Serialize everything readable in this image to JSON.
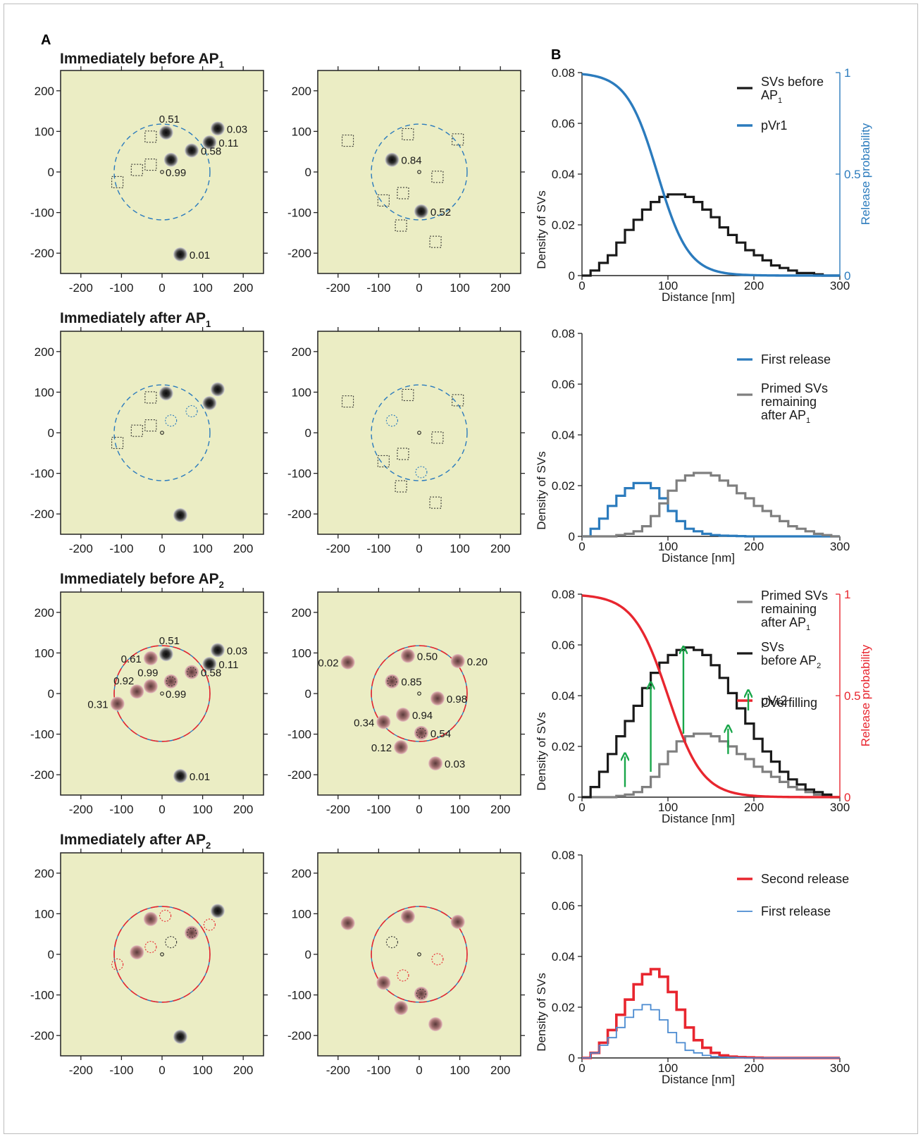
{
  "panel_labels": {
    "a": "A",
    "b": "B"
  },
  "colors": {
    "map_bg": "#ebedc4",
    "blue": "#2b7bbd",
    "red": "#e8262f",
    "gray": "#7f7f7f",
    "black": "#1a1a1a",
    "green": "#19a64a",
    "pink_fill": "#b5787a"
  },
  "row_titles": [
    {
      "main": "Immediately before AP",
      "sub": "1"
    },
    {
      "main": "Immediately after AP",
      "sub": "1"
    },
    {
      "main": "Immediately before AP",
      "sub": "2"
    },
    {
      "main": "Immediately after AP",
      "sub": "2"
    }
  ],
  "maps": {
    "x_ticks": [
      -200,
      -100,
      0,
      100,
      200
    ],
    "y_ticks": [
      200,
      100,
      0,
      -100,
      -200
    ],
    "range": [
      -250,
      250
    ],
    "circle_radius_nm": 118,
    "rows": [
      {
        "left": {
          "ring": "blue",
          "svs": [
            {
              "x": 10,
              "y": 97,
              "kind": "dark",
              "label": "0.51"
            },
            {
              "x": 137,
              "y": 107,
              "kind": "dark",
              "label": "0.03"
            },
            {
              "x": 117,
              "y": 73,
              "kind": "dark",
              "label": "0.11"
            },
            {
              "x": 73,
              "y": 53,
              "kind": "dark",
              "label": "0.58"
            },
            {
              "x": 22,
              "y": 30,
              "kind": "dark",
              "label": ""
            },
            {
              "x": 45,
              "y": -203,
              "kind": "dark",
              "label": "0.01"
            }
          ],
          "center_label": "0.99",
          "squares": [
            [
              -28,
              87
            ],
            [
              -28,
              18
            ],
            [
              -62,
              5
            ],
            [
              -110,
              -25
            ]
          ],
          "dotted": []
        },
        "right": {
          "ring": "blue",
          "svs": [
            {
              "x": -67,
              "y": 30,
              "kind": "dark",
              "label": "0.84"
            },
            {
              "x": 5,
              "y": -97,
              "kind": "dark",
              "label": "0.52"
            }
          ],
          "center_label": "",
          "squares": [
            [
              -176,
              77
            ],
            [
              -28,
              93
            ],
            [
              95,
              80
            ],
            [
              45,
              -12
            ],
            [
              -40,
              -52
            ],
            [
              -88,
              -70
            ],
            [
              -45,
              -132
            ],
            [
              40,
              -172
            ]
          ],
          "dotted": []
        }
      },
      {
        "left": {
          "ring": "blue",
          "svs": [
            {
              "x": 10,
              "y": 97,
              "kind": "dark",
              "label": ""
            },
            {
              "x": 137,
              "y": 107,
              "kind": "dark",
              "label": ""
            },
            {
              "x": 117,
              "y": 73,
              "kind": "dark",
              "label": ""
            },
            {
              "x": 45,
              "y": -203,
              "kind": "dark",
              "label": ""
            }
          ],
          "center_label": "",
          "squares": [
            [
              -28,
              87
            ],
            [
              -28,
              18
            ],
            [
              -62,
              5
            ],
            [
              -110,
              -25
            ]
          ],
          "dotted": [
            [
              73,
              53,
              "blue"
            ],
            [
              22,
              30,
              "blue"
            ]
          ]
        },
        "right": {
          "ring": "blue",
          "svs": [],
          "center_label": "",
          "squares": [
            [
              -176,
              77
            ],
            [
              -28,
              93
            ],
            [
              95,
              80
            ],
            [
              45,
              -12
            ],
            [
              -40,
              -52
            ],
            [
              -88,
              -70
            ],
            [
              -45,
              -132
            ],
            [
              40,
              -172
            ]
          ],
          "dotted": [
            [
              -67,
              30,
              "blue"
            ],
            [
              5,
              -97,
              "blue"
            ]
          ]
        }
      },
      {
        "left": {
          "ring": "redblue",
          "svs": [
            {
              "x": 10,
              "y": 97,
              "kind": "dark",
              "label": "0.51"
            },
            {
              "x": 137,
              "y": 107,
              "kind": "dark",
              "label": "0.03"
            },
            {
              "x": 117,
              "y": 73,
              "kind": "dark",
              "label": "0.11"
            },
            {
              "x": 73,
              "y": 53,
              "kind": "pinkring",
              "label": "0.58"
            },
            {
              "x": 22,
              "y": 30,
              "kind": "pinkring",
              "label": ""
            },
            {
              "x": 45,
              "y": -203,
              "kind": "dark",
              "label": "0.01"
            },
            {
              "x": -28,
              "y": 87,
              "kind": "pink",
              "label": "0.61"
            },
            {
              "x": -28,
              "y": 18,
              "kind": "pink",
              "label": "0.99"
            },
            {
              "x": -62,
              "y": 5,
              "kind": "pink",
              "label": "0.92"
            },
            {
              "x": -110,
              "y": -25,
              "kind": "pink",
              "label": "0.31"
            }
          ],
          "center_label": "0.99",
          "squares": [],
          "dotted": []
        },
        "right": {
          "ring": "redblue",
          "svs": [
            {
              "x": -176,
              "y": 77,
              "kind": "pink",
              "label": "0.02"
            },
            {
              "x": -28,
              "y": 93,
              "kind": "pink",
              "label": "0.50"
            },
            {
              "x": 95,
              "y": 80,
              "kind": "pink",
              "label": "0.20"
            },
            {
              "x": -67,
              "y": 30,
              "kind": "pinkring",
              "label": "0.85"
            },
            {
              "x": 45,
              "y": -12,
              "kind": "pink",
              "label": "0.98"
            },
            {
              "x": -40,
              "y": -52,
              "kind": "pink",
              "label": "0.94"
            },
            {
              "x": -88,
              "y": -70,
              "kind": "pink",
              "label": "0.34"
            },
            {
              "x": 5,
              "y": -97,
              "kind": "pinkring",
              "label": "0.54"
            },
            {
              "x": -45,
              "y": -132,
              "kind": "pink",
              "label": "0.12"
            },
            {
              "x": 40,
              "y": -172,
              "kind": "pink",
              "label": "0.03"
            }
          ],
          "center_label": "",
          "squares": [],
          "dotted": []
        }
      },
      {
        "left": {
          "ring": "redblue",
          "svs": [
            {
              "x": 137,
              "y": 107,
              "kind": "dark",
              "label": ""
            },
            {
              "x": 45,
              "y": -203,
              "kind": "dark",
              "label": ""
            },
            {
              "x": -28,
              "y": 87,
              "kind": "pink",
              "label": ""
            },
            {
              "x": -62,
              "y": 5,
              "kind": "pink",
              "label": ""
            },
            {
              "x": 73,
              "y": 53,
              "kind": "pinkring",
              "label": ""
            }
          ],
          "center_label": "",
          "squares": [],
          "dotted": [
            [
              8,
              95,
              "red"
            ],
            [
              117,
              73,
              "red"
            ],
            [
              -28,
              18,
              "red"
            ],
            [
              22,
              30,
              "black"
            ],
            [
              -110,
              -25,
              "red"
            ]
          ]
        },
        "right": {
          "ring": "redblue",
          "svs": [
            {
              "x": -176,
              "y": 77,
              "kind": "pink",
              "label": ""
            },
            {
              "x": -28,
              "y": 93,
              "kind": "pink",
              "label": ""
            },
            {
              "x": 95,
              "y": 80,
              "kind": "pink",
              "label": ""
            },
            {
              "x": -88,
              "y": -70,
              "kind": "pink",
              "label": ""
            },
            {
              "x": 5,
              "y": -97,
              "kind": "pinkring",
              "label": ""
            },
            {
              "x": -45,
              "y": -132,
              "kind": "pink",
              "label": ""
            },
            {
              "x": 40,
              "y": -172,
              "kind": "pink",
              "label": ""
            }
          ],
          "center_label": "",
          "squares": [],
          "dotted": [
            [
              -67,
              30,
              "black"
            ],
            [
              45,
              -12,
              "red"
            ],
            [
              -40,
              -52,
              "red"
            ]
          ]
        }
      }
    ]
  },
  "chart_data": [
    {
      "type": "line",
      "xlabel": "Distance [nm]",
      "ylabel": "Density of SVs",
      "xlim": [
        0,
        300
      ],
      "ylim": [
        0,
        0.08
      ],
      "x_ticks": [
        0,
        100,
        200,
        300
      ],
      "y_ticks": [
        "0",
        "0.02",
        "0.04",
        "0.06",
        "0.08"
      ],
      "y2label": "Release probability",
      "y2_ticks": [
        "0",
        "0.5",
        "1"
      ],
      "y2_color": "#2b7bbd",
      "series": [
        {
          "name": "SVs before AP",
          "name_sub": "1",
          "color": "#1a1a1a",
          "style": "step",
          "width": 3.2,
          "values": [
            0.0,
            0.002,
            0.005,
            0.008,
            0.013,
            0.018,
            0.022,
            0.026,
            0.029,
            0.031,
            0.032,
            0.032,
            0.031,
            0.029,
            0.026,
            0.023,
            0.019,
            0.016,
            0.013,
            0.01,
            0.008,
            0.006,
            0.004,
            0.003,
            0.002,
            0.001,
            0.001,
            0.0005,
            0.0,
            0.0
          ]
        },
        {
          "name": "pVr1",
          "color": "#2b7bbd",
          "style": "sigmoid",
          "width": 3.4,
          "axis": "right",
          "x0": 88,
          "k": 18
        }
      ]
    },
    {
      "type": "line",
      "xlabel": "Distance [nm]",
      "ylabel": "Density of SVs",
      "xlim": [
        0,
        300
      ],
      "ylim": [
        0,
        0.08
      ],
      "x_ticks": [
        0,
        100,
        200,
        300
      ],
      "y_ticks": [
        "0",
        "0.02",
        "0.04",
        "0.06",
        "0.08"
      ],
      "series": [
        {
          "name": "First release",
          "color": "#2b7bbd",
          "style": "step",
          "width": 3.2,
          "values": [
            0.0,
            0.003,
            0.007,
            0.012,
            0.016,
            0.019,
            0.021,
            0.021,
            0.019,
            0.015,
            0.01,
            0.006,
            0.003,
            0.002,
            0.001,
            0.0005,
            0.0003,
            0.0002,
            0.0001,
            0.0,
            0.0,
            0.0,
            0.0,
            0.0,
            0.0,
            0.0,
            0.0,
            0.0,
            0.0,
            0.0
          ]
        },
        {
          "name": "Primed SVs remaining after AP",
          "name_sub": "1",
          "color": "#7f7f7f",
          "style": "step",
          "width": 3.2,
          "values": [
            0.0,
            0.0,
            0.0,
            0.0,
            0.0005,
            0.001,
            0.002,
            0.004,
            0.008,
            0.013,
            0.018,
            0.022,
            0.024,
            0.025,
            0.025,
            0.024,
            0.022,
            0.02,
            0.017,
            0.015,
            0.012,
            0.01,
            0.008,
            0.006,
            0.004,
            0.003,
            0.002,
            0.001,
            0.0005,
            0.0
          ]
        }
      ]
    },
    {
      "type": "line",
      "xlabel": "Distance [nm]",
      "ylabel": "Density of SVs",
      "xlim": [
        0,
        300
      ],
      "ylim": [
        0,
        0.08
      ],
      "x_ticks": [
        0,
        100,
        200,
        300
      ],
      "y_ticks": [
        "0",
        "0.02",
        "0.04",
        "0.06",
        "0.08"
      ],
      "y2label": "Release probability",
      "y2_ticks": [
        "0",
        "0.5",
        "1"
      ],
      "y2_color": "#e8262f",
      "series": [
        {
          "name": "Primed SVs remaining after AP",
          "name_sub": "1",
          "color": "#7f7f7f",
          "style": "step",
          "width": 3.2,
          "values": [
            0.0,
            0.0,
            0.0,
            0.0,
            0.0005,
            0.001,
            0.002,
            0.004,
            0.008,
            0.013,
            0.018,
            0.022,
            0.024,
            0.025,
            0.025,
            0.024,
            0.022,
            0.02,
            0.017,
            0.015,
            0.012,
            0.01,
            0.008,
            0.006,
            0.004,
            0.003,
            0.002,
            0.001,
            0.0005,
            0.0
          ]
        },
        {
          "name": "SVs before AP",
          "name_sub": "2",
          "color": "#1a1a1a",
          "style": "step",
          "width": 3.2,
          "values": [
            0.0,
            0.004,
            0.01,
            0.017,
            0.024,
            0.03,
            0.036,
            0.043,
            0.049,
            0.053,
            0.056,
            0.058,
            0.059,
            0.058,
            0.056,
            0.052,
            0.047,
            0.041,
            0.035,
            0.029,
            0.023,
            0.018,
            0.014,
            0.01,
            0.007,
            0.005,
            0.003,
            0.002,
            0.001,
            0.0
          ]
        },
        {
          "name": "pVr2",
          "color": "#e8262f",
          "style": "sigmoid",
          "width": 3.4,
          "axis": "right",
          "x0": 100,
          "k": 20
        }
      ],
      "overfilling": {
        "label": "Overfilling",
        "color": "#19a64a",
        "arrows": [
          [
            50,
            0.004,
            0.016
          ],
          [
            80,
            0.01,
            0.044
          ],
          [
            118,
            0.025,
            0.058
          ],
          [
            170,
            0.017,
            0.027
          ]
        ]
      }
    },
    {
      "type": "line",
      "xlabel": "Distance [nm]",
      "ylabel": "Density of SVs",
      "xlim": [
        0,
        300
      ],
      "ylim": [
        0,
        0.08
      ],
      "x_ticks": [
        0,
        100,
        200,
        300
      ],
      "y_ticks": [
        "0",
        "0.02",
        "0.04",
        "0.06",
        "0.08"
      ],
      "series": [
        {
          "name": "Second release",
          "color": "#e8262f",
          "style": "step",
          "width": 3.6,
          "values": [
            0.0,
            0.002,
            0.006,
            0.011,
            0.017,
            0.023,
            0.029,
            0.033,
            0.035,
            0.032,
            0.026,
            0.019,
            0.012,
            0.007,
            0.004,
            0.002,
            0.001,
            0.0005,
            0.0003,
            0.0002,
            0.0001,
            0.0,
            0.0,
            0.0,
            0.0,
            0.0,
            0.0,
            0.0,
            0.0,
            0.0
          ]
        },
        {
          "name": "First release",
          "color": "#4a8ad0",
          "style": "step",
          "width": 1.8,
          "values": [
            0.0,
            0.002,
            0.005,
            0.008,
            0.012,
            0.016,
            0.019,
            0.021,
            0.019,
            0.015,
            0.01,
            0.006,
            0.003,
            0.002,
            0.001,
            0.0005,
            0.0003,
            0.0002,
            0.0001,
            0.0,
            0.0,
            0.0,
            0.0,
            0.0,
            0.0,
            0.0,
            0.0,
            0.0,
            0.0,
            0.0
          ]
        }
      ]
    }
  ]
}
